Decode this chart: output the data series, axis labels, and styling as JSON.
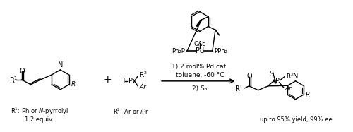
{
  "bg_color": "#ffffff",
  "fig_width": 5.0,
  "fig_height": 1.87,
  "dpi": 100,
  "conditions_text_1": "1) 2 mol% Pd cat.",
  "conditions_text_2": "toluene, -60 °C",
  "conditions_text_3": "2) S₈",
  "r1_label_line1": "R¹: Ph or N-pyrrolyl",
  "r1_label_line2": "1.2 equiv.",
  "r2_label": "R²: Ar or iPr",
  "yield_text": "up to 95% yield, 99% ee",
  "ph2p_text": "Ph₂P",
  "pph2_text": "PPh₂",
  "oac_text": "OAc",
  "pd_text": "Pd"
}
